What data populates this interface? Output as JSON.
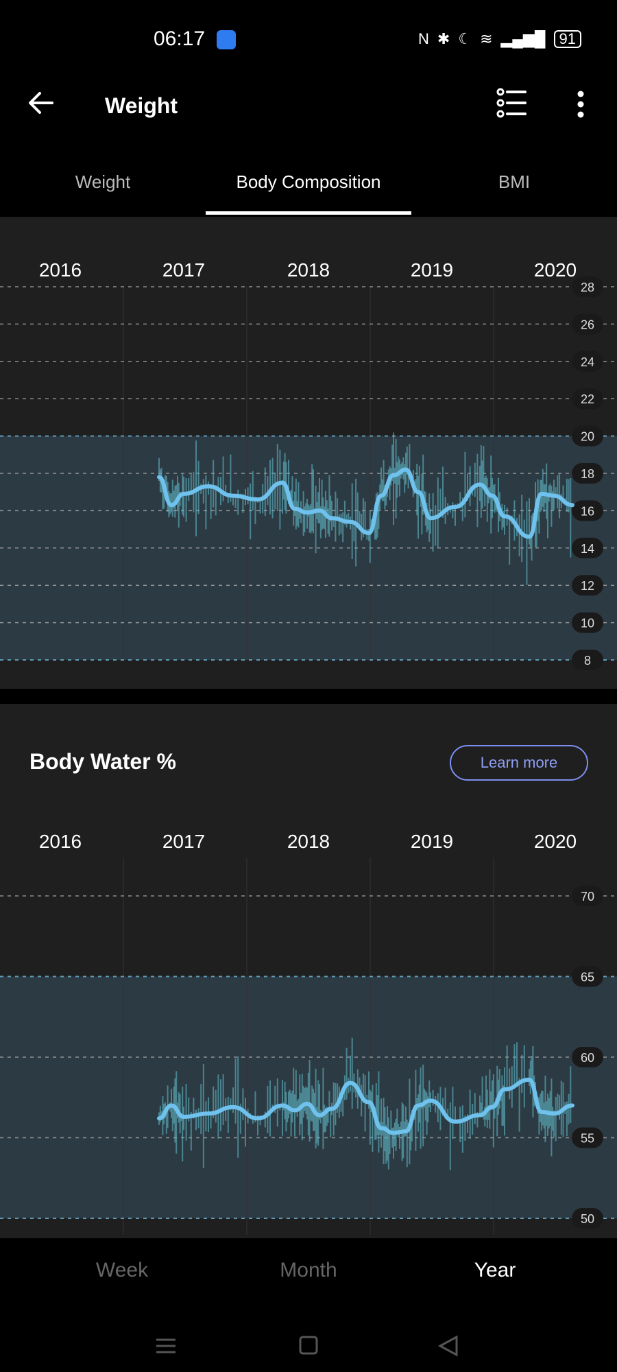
{
  "status": {
    "time": "06:17",
    "battery": "91"
  },
  "appbar": {
    "title": "Weight"
  },
  "tabs": [
    "Weight",
    "Body Composition",
    "BMI"
  ],
  "section": {
    "title": "Body Water %",
    "learn_more": "Learn more"
  },
  "bottom_nav": [
    "Week",
    "Month",
    "Year"
  ],
  "colors": {
    "accent": "#6fc2ee",
    "raw": "#5fb6c4",
    "band": "#2c3a43"
  },
  "chart_data": [
    {
      "type": "line",
      "title": "",
      "x_tick_labels": [
        "2016",
        "2017",
        "2018",
        "2019",
        "2020"
      ],
      "y_tick_labels": [
        "28",
        "26",
        "24",
        "22",
        "20",
        "18",
        "16",
        "14",
        "12",
        "10",
        "8"
      ],
      "ylim": [
        8,
        28
      ],
      "band": [
        8,
        20
      ],
      "grid": true,
      "series": [
        {
          "x": [
            2016.8,
            2016.9,
            2017.0,
            2017.2,
            2017.4,
            2017.6,
            2017.8,
            2017.9,
            2018.0,
            2018.1,
            2018.2,
            2018.35,
            2018.5,
            2018.6,
            2018.7,
            2018.8,
            2018.9,
            2019.0,
            2019.2,
            2019.4,
            2019.5,
            2019.6,
            2019.8,
            2019.9,
            2020.0,
            2020.15
          ],
          "y": [
            17.8,
            16.3,
            16.9,
            17.3,
            16.8,
            16.6,
            17.5,
            16.1,
            15.9,
            16.0,
            15.6,
            15.4,
            14.8,
            16.8,
            17.9,
            18.2,
            17.0,
            15.6,
            16.2,
            17.4,
            16.8,
            15.7,
            14.6,
            16.9,
            16.8,
            16.3
          ]
        }
      ]
    },
    {
      "type": "line",
      "title": "Body Water %",
      "x_tick_labels": [
        "2016",
        "2017",
        "2018",
        "2019",
        "2020"
      ],
      "y_tick_labels": [
        "70",
        "65",
        "60",
        "55",
        "50"
      ],
      "ylim": [
        50,
        70
      ],
      "band": [
        50,
        65
      ],
      "grid": true,
      "series": [
        {
          "x": [
            2016.8,
            2016.9,
            2017.0,
            2017.2,
            2017.4,
            2017.6,
            2017.8,
            2017.9,
            2018.0,
            2018.1,
            2018.2,
            2018.35,
            2018.5,
            2018.6,
            2018.7,
            2018.8,
            2018.9,
            2019.0,
            2019.2,
            2019.4,
            2019.5,
            2019.6,
            2019.8,
            2019.9,
            2020.0,
            2020.15
          ],
          "y": [
            56.2,
            57.0,
            56.3,
            56.5,
            56.9,
            56.2,
            57.0,
            56.7,
            57.1,
            56.4,
            56.8,
            58.4,
            57.2,
            55.6,
            55.3,
            55.4,
            57.0,
            57.3,
            56.0,
            56.4,
            56.9,
            58.0,
            58.6,
            56.6,
            56.5,
            57.0
          ]
        }
      ]
    }
  ]
}
